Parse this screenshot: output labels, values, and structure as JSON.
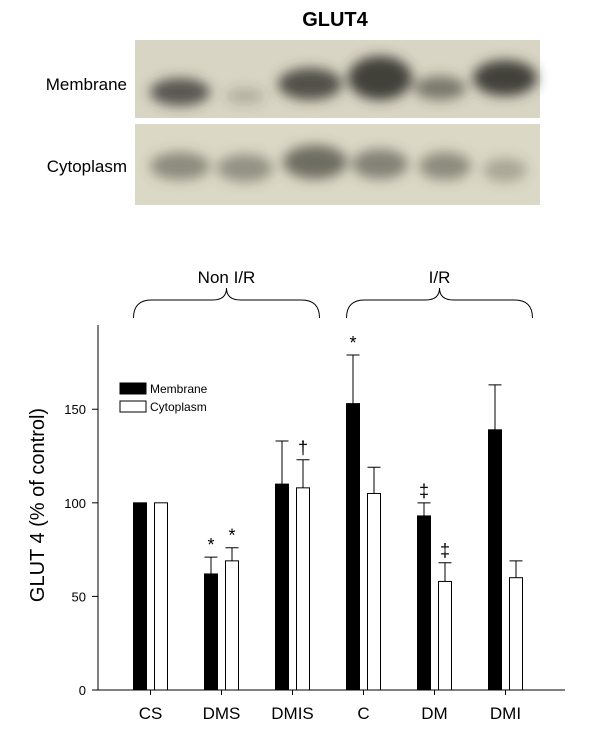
{
  "blot": {
    "title": "GLUT4",
    "rows": [
      "Membrane",
      "Cytoplasm"
    ]
  },
  "chart_data": {
    "type": "bar",
    "y_label": "GLUT 4 (% of control)",
    "categories": [
      "CS",
      "DMS",
      "DMIS",
      "C",
      "DM",
      "DMI"
    ],
    "series": [
      {
        "name": "Membrane",
        "color": "#000000",
        "values": [
          100,
          62,
          110,
          153,
          93,
          139
        ],
        "errors": [
          0,
          9,
          23,
          26,
          7,
          24
        ]
      },
      {
        "name": "Cytoplasm",
        "color": "#ffffff",
        "values": [
          100,
          69,
          108,
          105,
          58,
          60
        ],
        "errors": [
          0,
          7,
          15,
          14,
          10,
          9
        ]
      }
    ],
    "ylim": [
      0,
      195
    ],
    "yticks": [
      0,
      50,
      100,
      150
    ],
    "legend": "upper left",
    "groups": [
      {
        "label": "Non I/R",
        "from": "CS",
        "to": "DMIS"
      },
      {
        "label": "I/R",
        "from": "C",
        "to": "DMI"
      }
    ],
    "annotations": [
      {
        "text": "*",
        "category": "DMS",
        "series": "Membrane"
      },
      {
        "text": "*",
        "category": "DMS",
        "series": "Cytoplasm"
      },
      {
        "text": "†",
        "category": "DMIS",
        "series": "Cytoplasm"
      },
      {
        "text": "*",
        "category": "C",
        "series": "Membrane"
      },
      {
        "text": "‡",
        "category": "DM",
        "series": "Membrane"
      },
      {
        "text": "‡",
        "category": "DM",
        "series": "Cytoplasm"
      }
    ]
  }
}
